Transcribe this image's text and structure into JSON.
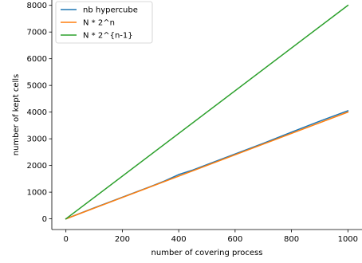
{
  "chart_data": {
    "type": "line",
    "title": "",
    "xlabel": "number of covering process",
    "ylabel": "number of kept cells",
    "xlim": [
      -50,
      1050
    ],
    "ylim": [
      -400,
      8200
    ],
    "x_ticks": [
      0,
      200,
      400,
      600,
      800,
      1000
    ],
    "y_ticks": [
      0,
      1000,
      2000,
      3000,
      4000,
      5000,
      6000,
      7000,
      8000
    ],
    "grid": false,
    "legend_position": "top-left",
    "series": [
      {
        "name": "nb hypercube",
        "color": "#1f77b4",
        "x": [
          0,
          100,
          200,
          300,
          350,
          400,
          450,
          500,
          600,
          700,
          800,
          900,
          1000
        ],
        "y": [
          0,
          410,
          810,
          1210,
          1420,
          1660,
          1830,
          2030,
          2430,
          2830,
          3250,
          3660,
          4050
        ]
      },
      {
        "name": "N * 2^n",
        "color": "#ff7f0e",
        "x": [
          0,
          1000
        ],
        "y": [
          0,
          4000
        ]
      },
      {
        "name": "N * 2^{n-1}",
        "color": "#2ca02c",
        "x": [
          0,
          1000
        ],
        "y": [
          0,
          8000
        ]
      }
    ]
  }
}
